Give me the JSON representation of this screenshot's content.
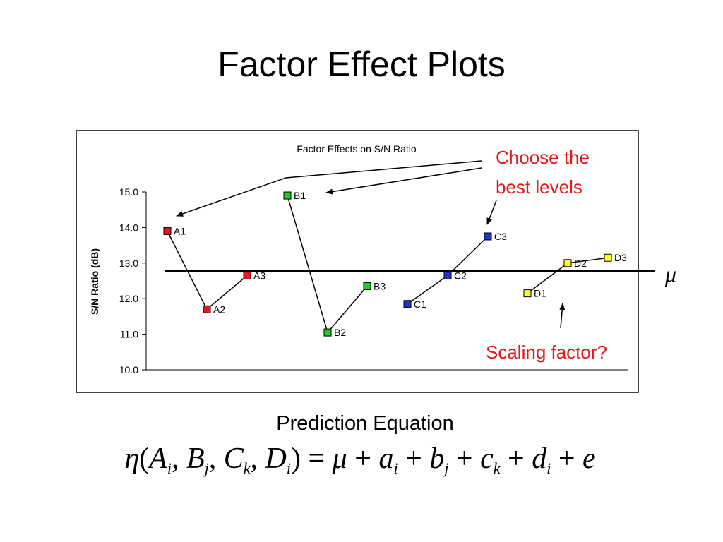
{
  "slide": {
    "title": "Factor Effect Plots"
  },
  "chart_data": {
    "type": "line",
    "title": "Factor Effects on S/N Ratio",
    "ylabel": "S/N Ratio (dB)",
    "ylim": [
      10.0,
      15.0
    ],
    "yticks": [
      "15.0",
      "14.0",
      "13.0",
      "12.0",
      "11.0",
      "10.0"
    ],
    "grid": false,
    "mean_line": {
      "value": 12.78,
      "label": "μ"
    },
    "series": [
      {
        "name": "A",
        "color": "#e31a1c",
        "labels": [
          "A1",
          "A2",
          "A3"
        ],
        "values": [
          13.9,
          11.7,
          12.65
        ]
      },
      {
        "name": "B",
        "color": "#22cc22",
        "labels": [
          "B1",
          "B2",
          "B3"
        ],
        "values": [
          14.9,
          11.05,
          12.35
        ]
      },
      {
        "name": "C",
        "color": "#1f33cc",
        "labels": [
          "C1",
          "C2",
          "C3"
        ],
        "values": [
          11.85,
          12.65,
          13.75
        ]
      },
      {
        "name": "D",
        "color": "#ffff33",
        "labels": [
          "D1",
          "D2",
          "D3"
        ],
        "values": [
          12.15,
          13.0,
          13.15
        ]
      }
    ],
    "annotations": [
      {
        "text_lines": [
          "Choose the",
          "best levels"
        ],
        "color": "#e31a1c"
      },
      {
        "text_lines": [
          "Scaling factor?"
        ],
        "color": "#e31a1c"
      }
    ]
  },
  "prediction": {
    "title": "Prediction Equation"
  }
}
